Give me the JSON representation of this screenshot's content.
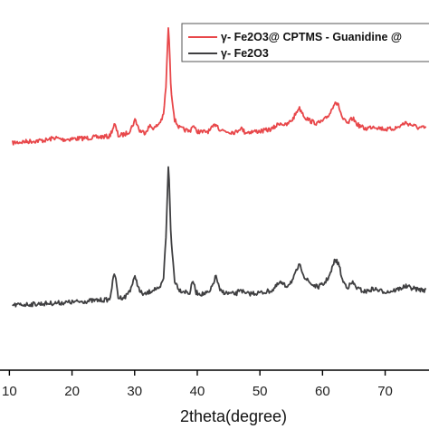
{
  "chart_data": {
    "type": "line",
    "xlabel": "2theta(degree)",
    "xlim": [
      8.5,
      77
    ],
    "x_ticks": [
      10,
      20,
      30,
      40,
      50,
      60,
      70
    ],
    "ylabel": "",
    "y_ticks_shown": false,
    "legend_position": "top-right",
    "series": [
      {
        "name": "γ- Fe2O3@ CPTMS - Guanidine @",
        "color": "#e8474a",
        "baseline_fraction": 0.63,
        "points": [
          [
            10.5,
            0.2
          ],
          [
            12,
            0.9
          ],
          [
            14,
            1.6
          ],
          [
            16,
            2.2
          ],
          [
            17.2,
            4.0
          ],
          [
            18.5,
            2.6
          ],
          [
            20,
            3.2
          ],
          [
            22,
            3.6
          ],
          [
            24,
            4.4
          ],
          [
            26,
            5.0
          ],
          [
            26.8,
            14.0
          ],
          [
            27.4,
            5.4
          ],
          [
            28.5,
            6.6
          ],
          [
            29.3,
            9.5
          ],
          [
            30.1,
            17.5
          ],
          [
            30.8,
            9.0
          ],
          [
            31.6,
            7.8
          ],
          [
            32.4,
            12.5
          ],
          [
            33.2,
            11.0
          ],
          [
            33.9,
            14.5
          ],
          [
            34.6,
            20.0
          ],
          [
            35.0,
            42.0
          ],
          [
            35.4,
            88.0
          ],
          [
            35.8,
            40.0
          ],
          [
            36.4,
            17.0
          ],
          [
            37.2,
            11.0
          ],
          [
            38.2,
            9.5
          ],
          [
            38.8,
            8.5
          ],
          [
            39.3,
            13.5
          ],
          [
            39.8,
            9.0
          ],
          [
            40.8,
            8.0
          ],
          [
            42.0,
            9.0
          ],
          [
            43.0,
            14.5
          ],
          [
            43.6,
            10.0
          ],
          [
            44.8,
            8.5
          ],
          [
            46.2,
            8.0
          ],
          [
            46.9,
            11.5
          ],
          [
            47.6,
            8.0
          ],
          [
            49.0,
            8.5
          ],
          [
            50.5,
            9.0
          ],
          [
            52.0,
            10.5
          ],
          [
            53.2,
            15.0
          ],
          [
            54.2,
            13.0
          ],
          [
            55.3,
            18.0
          ],
          [
            56.2,
            26.0
          ],
          [
            56.6,
            24.0
          ],
          [
            57.2,
            19.0
          ],
          [
            58.2,
            16.0
          ],
          [
            59.2,
            14.5
          ],
          [
            60.2,
            16.5
          ],
          [
            61.2,
            22.0
          ],
          [
            62.0,
            31.0
          ],
          [
            62.6,
            27.0
          ],
          [
            63.2,
            18.0
          ],
          [
            64.0,
            14.0
          ],
          [
            64.8,
            18.5
          ],
          [
            65.6,
            13.5
          ],
          [
            66.8,
            10.5
          ],
          [
            68.2,
            12.5
          ],
          [
            69.2,
            11.0
          ],
          [
            70.5,
            10.0
          ],
          [
            72.0,
            11.5
          ],
          [
            73.2,
            15.0
          ],
          [
            74.2,
            13.5
          ],
          [
            75.2,
            11.5
          ],
          [
            76.5,
            11.0
          ]
        ]
      },
      {
        "name": "γ- Fe2O3",
        "color": "#3f3f41",
        "baseline_fraction": 0.17,
        "points": [
          [
            10.5,
            0.2
          ],
          [
            12,
            0.6
          ],
          [
            14,
            1.0
          ],
          [
            16,
            1.4
          ],
          [
            18,
            1.8
          ],
          [
            20,
            2.2
          ],
          [
            22,
            2.8
          ],
          [
            24,
            3.4
          ],
          [
            26,
            3.9
          ],
          [
            26.8,
            22.0
          ],
          [
            27.4,
            5.0
          ],
          [
            28.5,
            5.6
          ],
          [
            29.3,
            10.5
          ],
          [
            30.1,
            19.0
          ],
          [
            30.8,
            9.0
          ],
          [
            31.6,
            7.0
          ],
          [
            32.4,
            9.0
          ],
          [
            33.2,
            11.0
          ],
          [
            33.9,
            10.0
          ],
          [
            34.6,
            17.0
          ],
          [
            35.0,
            45.0
          ],
          [
            35.4,
            94.0
          ],
          [
            35.8,
            44.0
          ],
          [
            36.4,
            16.0
          ],
          [
            37.2,
            10.0
          ],
          [
            38.2,
            9.0
          ],
          [
            38.8,
            8.0
          ],
          [
            39.3,
            16.5
          ],
          [
            39.8,
            8.5
          ],
          [
            40.8,
            7.5
          ],
          [
            42.0,
            8.5
          ],
          [
            43.0,
            19.5
          ],
          [
            43.6,
            9.5
          ],
          [
            44.8,
            8.0
          ],
          [
            46.2,
            7.5
          ],
          [
            46.9,
            11.0
          ],
          [
            47.6,
            7.5
          ],
          [
            49.0,
            8.0
          ],
          [
            50.5,
            8.5
          ],
          [
            52.0,
            10.0
          ],
          [
            53.2,
            15.0
          ],
          [
            54.2,
            12.5
          ],
          [
            55.3,
            17.0
          ],
          [
            56.2,
            26.0
          ],
          [
            56.6,
            24.5
          ],
          [
            57.2,
            18.0
          ],
          [
            58.2,
            14.0
          ],
          [
            59.2,
            12.0
          ],
          [
            60.2,
            14.0
          ],
          [
            61.2,
            20.0
          ],
          [
            62.0,
            30.0
          ],
          [
            62.6,
            27.0
          ],
          [
            63.2,
            16.0
          ],
          [
            64.0,
            12.0
          ],
          [
            64.8,
            15.0
          ],
          [
            65.6,
            11.0
          ],
          [
            66.8,
            9.0
          ],
          [
            68.2,
            11.0
          ],
          [
            69.2,
            9.5
          ],
          [
            70.5,
            9.0
          ],
          [
            72.0,
            10.5
          ],
          [
            73.2,
            12.5
          ],
          [
            74.2,
            11.5
          ],
          [
            75.2,
            10.5
          ],
          [
            76.5,
            10.0
          ]
        ]
      }
    ]
  }
}
